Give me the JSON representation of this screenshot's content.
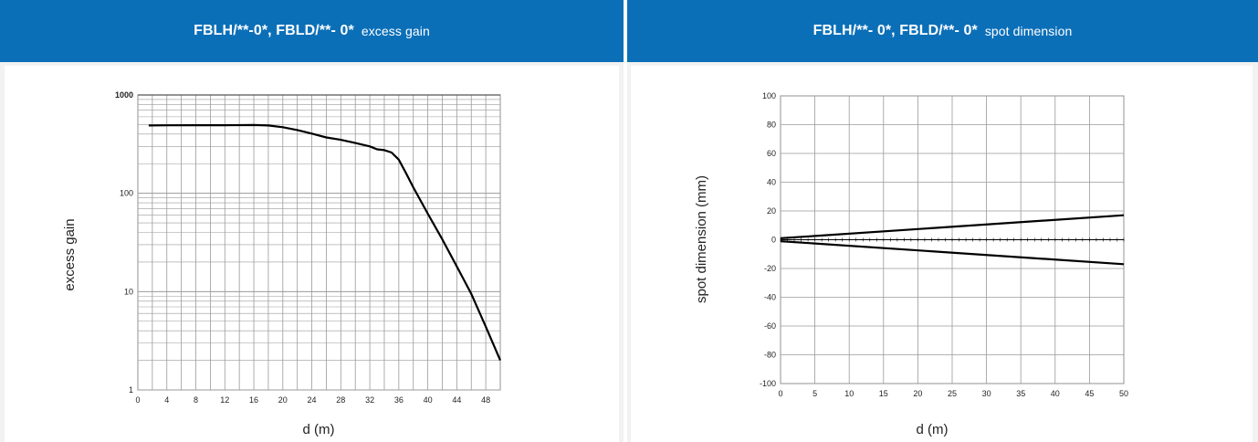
{
  "colors": {
    "header": "#0b6fb8",
    "header_text": "#ffffff",
    "panel_bg": "#f2f2f2",
    "plot_bg": "#ffffff",
    "grid": "#9a9a9a",
    "line": "#000000"
  },
  "chart_data": [
    {
      "type": "line",
      "header_title": "FBLH/**-0*, FBLD/**- 0*",
      "header_subtitle": "excess gain",
      "xlabel": "d (m)",
      "ylabel": "excess gain",
      "xlim": [
        0,
        50
      ],
      "ylim": [
        1,
        1000
      ],
      "yscale": "log",
      "grid": true,
      "xticks": [
        0,
        4,
        8,
        12,
        16,
        20,
        24,
        28,
        32,
        36,
        40,
        44,
        48
      ],
      "yticks": [
        1,
        10,
        100,
        1000
      ],
      "series": [
        {
          "x": [
            1.5,
            4,
            8,
            12,
            16,
            18,
            20,
            22,
            24,
            26,
            28,
            30,
            32,
            33,
            34,
            35,
            36,
            37,
            38,
            40,
            42,
            44,
            46,
            48,
            50
          ],
          "y": [
            490,
            492,
            493,
            493,
            495,
            490,
            470,
            440,
            405,
            370,
            350,
            325,
            300,
            280,
            275,
            260,
            220,
            160,
            115,
            62,
            34,
            18,
            9.5,
            4.4,
            2
          ]
        }
      ]
    },
    {
      "type": "line",
      "header_title": "FBLH/**- 0*, FBLD/**- 0*",
      "header_subtitle": "spot dimension",
      "xlabel": "d (m)",
      "ylabel": "spot dimension (mm)",
      "xlim": [
        0,
        50
      ],
      "ylim": [
        -100,
        100
      ],
      "grid": true,
      "xticks": [
        0,
        5,
        10,
        15,
        20,
        25,
        30,
        35,
        40,
        45,
        50
      ],
      "yticks": [
        -100,
        -80,
        -60,
        -40,
        -20,
        0,
        20,
        40,
        60,
        80,
        100
      ],
      "series": [
        {
          "x": [
            0,
            50
          ],
          "y": [
            1,
            17
          ]
        },
        {
          "x": [
            0,
            50
          ],
          "y": [
            -1,
            -17
          ]
        }
      ]
    }
  ]
}
